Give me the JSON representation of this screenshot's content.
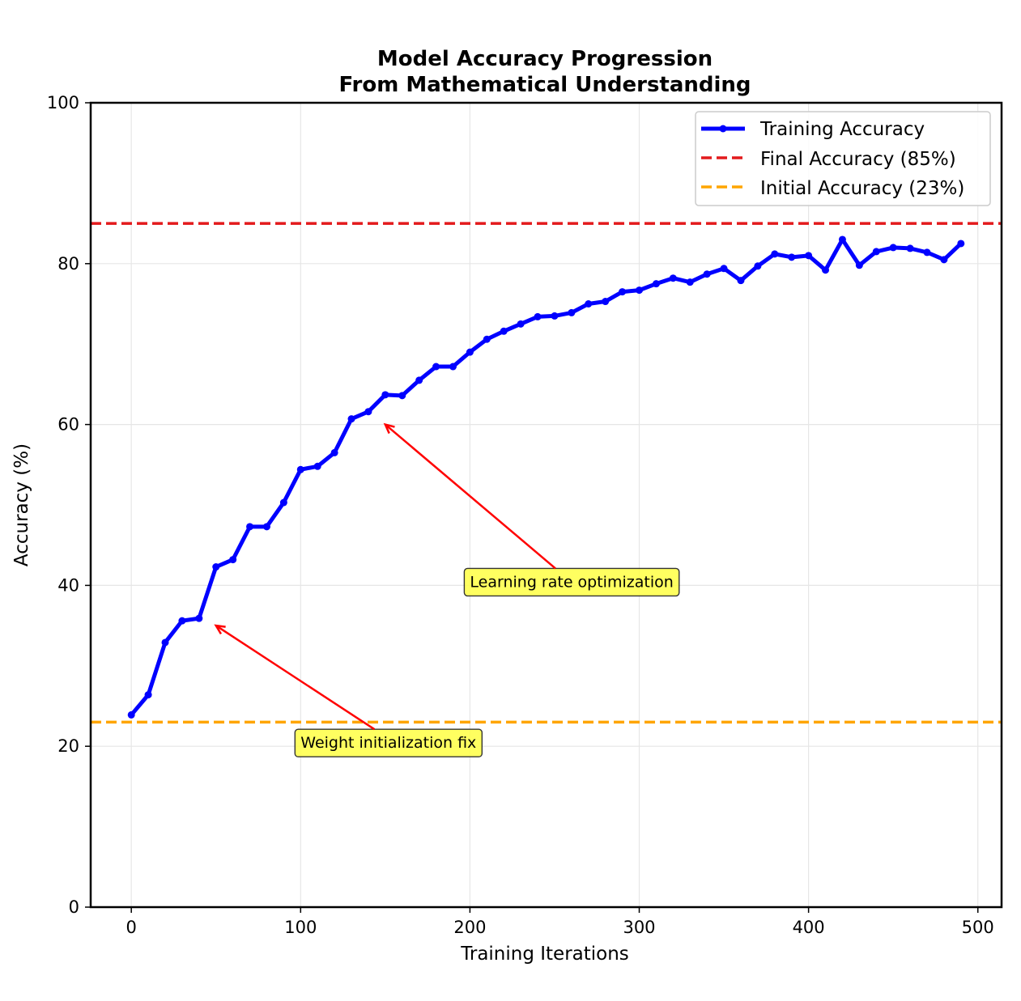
{
  "chart_data": {
    "type": "line",
    "title": [
      "Model Accuracy Progression",
      "From Mathematical Understanding"
    ],
    "xlabel": "Training Iterations",
    "ylabel": "Accuracy (%)",
    "xlim": [
      -24,
      514
    ],
    "ylim": [
      0,
      100
    ],
    "x_ticks": [
      0,
      100,
      200,
      300,
      400,
      500
    ],
    "y_ticks": [
      0,
      20,
      40,
      60,
      80,
      100
    ],
    "x_tick_labels": [
      "0",
      "100",
      "200",
      "300",
      "400",
      "500"
    ],
    "y_tick_labels": [
      "0",
      "20",
      "40",
      "60",
      "80",
      "100"
    ],
    "grid": true,
    "legend_position": "upper right",
    "series": [
      {
        "name": "Training Accuracy",
        "color": "#0000ff",
        "x": [
          0,
          10,
          20,
          30,
          40,
          50,
          60,
          70,
          80,
          90,
          100,
          110,
          120,
          130,
          140,
          150,
          160,
          170,
          180,
          190,
          200,
          210,
          220,
          230,
          240,
          250,
          260,
          270,
          280,
          290,
          300,
          310,
          320,
          330,
          340,
          350,
          360,
          370,
          380,
          390,
          400,
          410,
          420,
          430,
          440,
          450,
          460,
          470,
          480,
          490
        ],
        "y": [
          23.9,
          26.4,
          32.9,
          35.6,
          35.9,
          42.3,
          43.2,
          47.3,
          47.3,
          50.3,
          54.4,
          54.8,
          56.5,
          60.7,
          61.6,
          63.7,
          63.6,
          65.5,
          67.2,
          67.2,
          69.0,
          70.6,
          71.6,
          72.5,
          73.4,
          73.5,
          73.9,
          75.0,
          75.3,
          76.5,
          76.7,
          77.5,
          78.2,
          77.7,
          78.7,
          79.4,
          77.9,
          79.7,
          81.2,
          80.8,
          81.0,
          79.2,
          83.0,
          79.8,
          81.5,
          82.0,
          81.9,
          81.4,
          80.5,
          82.5
        ]
      }
    ],
    "reference_lines": [
      {
        "name": "Final Accuracy (85%)",
        "y": 85,
        "color": "#e31a1c",
        "style": "dashed"
      },
      {
        "name": "Initial Accuracy (23%)",
        "y": 23,
        "color": "#ffa500",
        "style": "dashed"
      }
    ],
    "annotations": [
      {
        "text": "Learning rate optimization",
        "xy": [
          150,
          60
        ],
        "xytext": [
          200,
          40.5
        ],
        "box_color": "#ffff44",
        "arrow_color": "#ff0000"
      },
      {
        "text": "Weight initialization fix",
        "xy": [
          50,
          35
        ],
        "xytext": [
          100,
          20.5
        ],
        "box_color": "#ffff44",
        "arrow_color": "#ff0000"
      }
    ]
  }
}
